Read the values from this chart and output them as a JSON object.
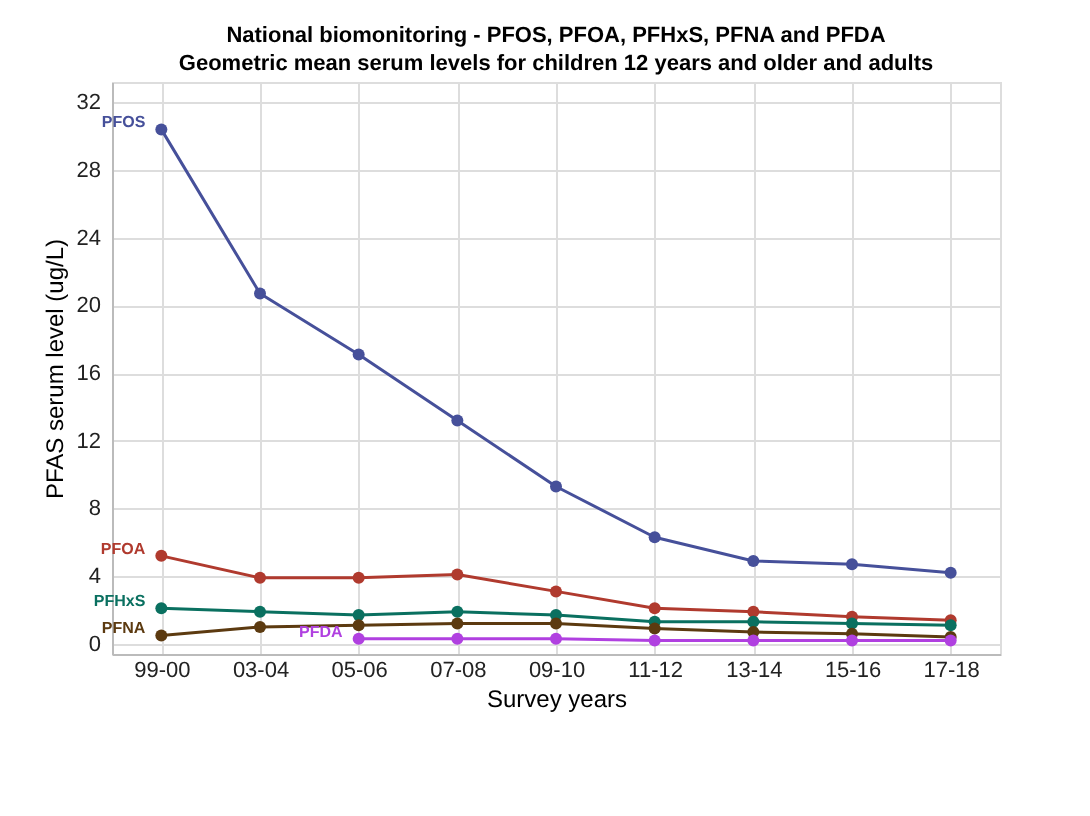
{
  "chart_data": {
    "type": "line",
    "title": "National biomonitoring - PFOS, PFOA, PFHxS, PFNA and PFDA",
    "subtitle": "Geometric mean serum levels for children 12 years and older and adults",
    "xlabel": "Survey years",
    "ylabel": "PFAS serum level (ug/L)",
    "categories": [
      "99-00",
      "03-04",
      "05-06",
      "07-08",
      "09-10",
      "11-12",
      "13-14",
      "15-16",
      "17-18"
    ],
    "series": [
      {
        "name": "PFOS",
        "color": "#46509a",
        "values": [
          30.4,
          20.7,
          17.1,
          13.2,
          9.3,
          6.3,
          4.9,
          4.7,
          4.2
        ]
      },
      {
        "name": "PFOA",
        "color": "#b03a2e",
        "values": [
          5.2,
          3.9,
          3.9,
          4.1,
          3.1,
          2.1,
          1.9,
          1.6,
          1.4
        ]
      },
      {
        "name": "PFHxS",
        "color": "#0a7060",
        "values": [
          2.1,
          1.9,
          1.7,
          1.9,
          1.7,
          1.3,
          1.3,
          1.2,
          1.1
        ]
      },
      {
        "name": "PFNA",
        "color": "#5c3a10",
        "values": [
          0.5,
          1.0,
          1.1,
          1.2,
          1.2,
          0.9,
          0.7,
          0.6,
          0.4
        ]
      },
      {
        "name": "PFDA",
        "color": "#b040e0",
        "values": [
          null,
          null,
          0.3,
          0.3,
          0.3,
          0.2,
          0.2,
          0.2,
          0.2
        ]
      }
    ],
    "ylim": [
      -0.6,
      33.2
    ],
    "yticks": [
      0,
      4,
      8,
      12,
      16,
      20,
      24,
      28,
      32
    ],
    "grid": true,
    "legend": false,
    "marker": "circle",
    "line_style": "solid"
  }
}
